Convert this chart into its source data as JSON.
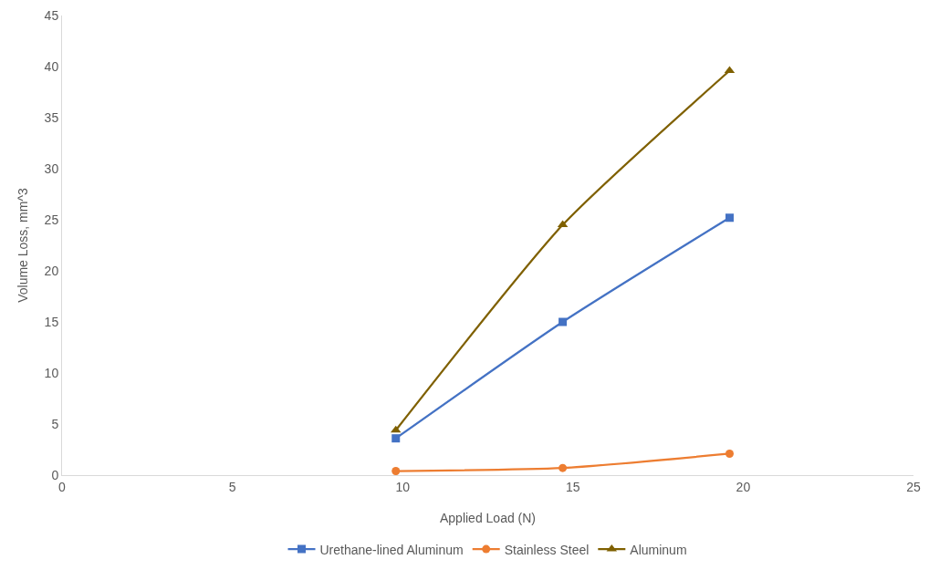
{
  "chart_data": {
    "type": "line",
    "xlabel": "Applied Load (N)",
    "ylabel": "Volume Loss, mm^3",
    "xlim": [
      0,
      25
    ],
    "xticks": [
      0,
      5,
      10,
      15,
      20,
      25
    ],
    "ylim": [
      0,
      45
    ],
    "yticks": [
      0,
      5,
      10,
      15,
      20,
      25,
      30,
      35,
      40,
      45
    ],
    "grid": false,
    "legend": "bottom",
    "x": [
      9.8,
      14.7,
      19.6
    ],
    "series": [
      {
        "name": "Urethane-lined Aluminum",
        "color": "#4472c4",
        "marker": "square",
        "values": [
          3.6,
          15.0,
          25.2
        ]
      },
      {
        "name": "Stainless Steel",
        "color": "#ed7d31",
        "marker": "circle",
        "values": [
          0.4,
          0.7,
          2.1
        ]
      },
      {
        "name": "Aluminum",
        "color": "#7f6000",
        "marker": "triangle",
        "values": [
          4.4,
          24.5,
          39.6
        ]
      }
    ]
  }
}
